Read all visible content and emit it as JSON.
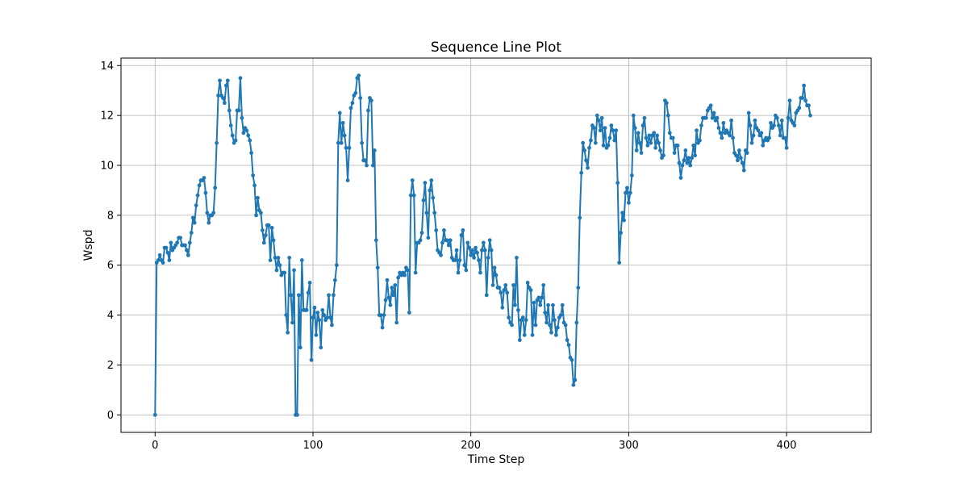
{
  "chart_data": {
    "type": "line",
    "title": "Sequence Line Plot",
    "xlabel": "Time Step",
    "ylabel": "Wspd",
    "xlim": [
      -21.6,
      453.6
    ],
    "ylim": [
      -0.7,
      14.3
    ],
    "xticks": [
      0,
      100,
      200,
      300,
      400
    ],
    "yticks": [
      0,
      2,
      4,
      6,
      8,
      10,
      12,
      14
    ],
    "grid": true,
    "legend": "none",
    "marker": "circle",
    "series": [
      {
        "color": "#1f77b4",
        "values": [
          0,
          6.1,
          6.2,
          6.4,
          6.2,
          6.1,
          6.7,
          6.7,
          6.5,
          6.2,
          6.9,
          6.6,
          6.7,
          6.8,
          6.9,
          7.1,
          7.1,
          6.8,
          6.8,
          6.8,
          6.6,
          6.4,
          6.9,
          7.3,
          7.9,
          7.7,
          8.4,
          8.8,
          9.2,
          9.4,
          9.4,
          9.5,
          8.9,
          8.1,
          7.7,
          8.0,
          8.0,
          8.1,
          9.1,
          10.9,
          12.8,
          13.4,
          12.8,
          12.7,
          12.5,
          13.2,
          13.4,
          12.2,
          11.6,
          11.2,
          10.9,
          11.0,
          12.2,
          12.2,
          13.5,
          11.9,
          11.3,
          11.5,
          11.4,
          11.2,
          11.0,
          10.5,
          9.6,
          9.2,
          8.0,
          8.7,
          8.2,
          8.1,
          7.4,
          6.9,
          7.2,
          7.6,
          7.6,
          6.2,
          7.5,
          7.0,
          6.3,
          5.8,
          6.3,
          6.0,
          5.6,
          5.7,
          5.7,
          4.0,
          3.3,
          6.3,
          4.8,
          3.7,
          5.8,
          0,
          0,
          4.8,
          2.7,
          6.2,
          4.2,
          4.2,
          4.2,
          4.9,
          5.3,
          2.2,
          3.9,
          4.3,
          3.2,
          4.1,
          3.8,
          2.7,
          4.2,
          4.0,
          3.8,
          3.9,
          4.8,
          3.9,
          3.6,
          4.8,
          5.4,
          6.0,
          10.9,
          12.1,
          10.9,
          11.7,
          11.2,
          10.7,
          9.4,
          10.7,
          12.3,
          12.5,
          12.8,
          12.9,
          13.5,
          13.6,
          12.7,
          10.9,
          10.2,
          10.2,
          10.0,
          12.2,
          12.7,
          12.6,
          10.0,
          10.6,
          7.0,
          5.9,
          4.0,
          4.0,
          3.5,
          4.0,
          4.6,
          5.4,
          4.7,
          4.4,
          5.1,
          4.8,
          5.2,
          3.7,
          5.5,
          5.7,
          5.6,
          5.7,
          5.6,
          5.9,
          5.8,
          4.1,
          8.8,
          9.4,
          8.8,
          5.7,
          6.9,
          6.9,
          7.0,
          7.3,
          8.6,
          9.3,
          8.1,
          7.1,
          9.0,
          9.4,
          8.7,
          8.1,
          7.4,
          6.6,
          6.5,
          6.4,
          6.9,
          7.4,
          7.0,
          7.0,
          6.8,
          7.0,
          6.3,
          6.2,
          6.2,
          6.6,
          5.7,
          6.2,
          7.2,
          7.4,
          6.0,
          5.8,
          6.9,
          6.7,
          6.4,
          6.6,
          6.3,
          6.7,
          6.5,
          6.2,
          5.7,
          6.6,
          6.9,
          6.6,
          4.8,
          6.3,
          7.0,
          6.6,
          5.2,
          5.9,
          5.6,
          5.1,
          5.1,
          4.9,
          4.3,
          5.0,
          5.2,
          4.9,
          3.9,
          3.7,
          3.6,
          5.2,
          4.4,
          6.3,
          4.2,
          3.0,
          3.8,
          3.9,
          3.2,
          3.8,
          5.3,
          5.1,
          5.0,
          3.2,
          4.5,
          3.6,
          4.6,
          4.7,
          4.4,
          4.7,
          5.2,
          4.1,
          3.7,
          4.4,
          3.6,
          3.3,
          4.4,
          3.8,
          3.2,
          3.5,
          3.9,
          4.0,
          4.4,
          3.7,
          3.6,
          3.0,
          2.8,
          2.3,
          2.2,
          1.2,
          1.4,
          3.7,
          5.1,
          7.9,
          9.7,
          10.9,
          10.6,
          10.2,
          9.9,
          10.7,
          11.0,
          11.6,
          11.5,
          10.9,
          12.0,
          11.8,
          11.4,
          11.9,
          10.8,
          11.5,
          10.7,
          10.8,
          11.1,
          11.6,
          11.4,
          11.0,
          11.4,
          9.3,
          6.1,
          7.3,
          8.1,
          7.8,
          8.9,
          9.1,
          8.5,
          8.9,
          9.6,
          12.0,
          11.5,
          10.6,
          11.3,
          10.9,
          10.5,
          11.6,
          11.9,
          11.1,
          10.8,
          11.2,
          10.9,
          11.2,
          11.3,
          10.7,
          11.2,
          10.9,
          10.6,
          10.3,
          10.4,
          12.6,
          12.5,
          12.0,
          11.3,
          11.1,
          11.1,
          10.5,
          10.8,
          10.8,
          10.1,
          9.5,
          10.0,
          10.2,
          10.6,
          10.1,
          10.3,
          10.0,
          10.3,
          10.8,
          10.4,
          11.4,
          10.9,
          11.0,
          11.6,
          11.9,
          11.9,
          11.9,
          12.2,
          12.3,
          12.4,
          11.9,
          12.1,
          11.8,
          11.9,
          11.5,
          11.3,
          11.1,
          11.7,
          11.3,
          11.4,
          11.3,
          11.2,
          11.8,
          11.1,
          10.5,
          10.4,
          10.2,
          10.6,
          10.3,
          10.1,
          9.8,
          10.6,
          10.5,
          12.1,
          11.6,
          10.9,
          11.2,
          11.8,
          11.5,
          11.4,
          11.2,
          11.3,
          10.8,
          11.0,
          11.1,
          11.0,
          11.1,
          11.7,
          11.5,
          11.6,
          12.0,
          11.9,
          11.6,
          11.2,
          11.8,
          11.1,
          11.1,
          10.7,
          11.9,
          12.6,
          11.8,
          11.7,
          11.6,
          12.1,
          12.2,
          12.3,
          12.7,
          12.7,
          13.2,
          12.6,
          12.4,
          12.4,
          12.0
        ]
      }
    ]
  }
}
